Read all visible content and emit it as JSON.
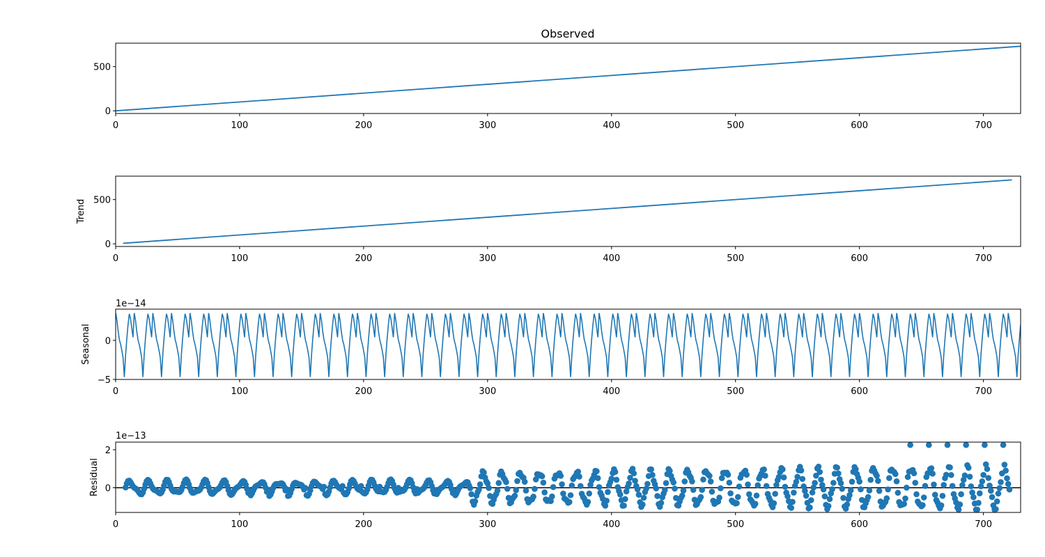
{
  "chart_data": [
    {
      "type": "line",
      "title": "Observed",
      "ylabel": "",
      "offset_text": "",
      "xlim": [
        0,
        730
      ],
      "ylim": [
        -30,
        765
      ],
      "x_ticks": [
        0,
        100,
        200,
        300,
        400,
        500,
        600,
        700
      ],
      "y_ticks": [
        0,
        500
      ],
      "y_tick_labels": [
        "0",
        "500"
      ],
      "series": [
        {
          "x": [
            0,
            730
          ],
          "y": [
            0,
            730
          ]
        }
      ]
    },
    {
      "type": "line",
      "title": "",
      "ylabel": "Trend",
      "offset_text": "",
      "xlim": [
        0,
        730
      ],
      "ylim": [
        -30,
        765
      ],
      "x_ticks": [
        0,
        100,
        200,
        300,
        400,
        500,
        600,
        700
      ],
      "y_ticks": [
        0,
        500
      ],
      "y_tick_labels": [
        "0",
        "500"
      ],
      "series": [
        {
          "x": [
            6,
            723
          ],
          "y": [
            6,
            723
          ]
        }
      ]
    },
    {
      "type": "line",
      "title": "",
      "ylabel": "Seasonal",
      "offset_text": "1e−14",
      "xlim": [
        0,
        730
      ],
      "ylim": [
        -5,
        4
      ],
      "x_ticks": [
        0,
        100,
        200,
        300,
        400,
        500,
        600,
        700
      ],
      "y_ticks": [
        -5,
        0
      ],
      "y_tick_labels": [
        "−5",
        "0"
      ],
      "period": 15,
      "cycle_values": [
        3.5,
        2.6,
        1.2,
        0.1,
        -0.5,
        -1.3,
        -2.2,
        -4.7,
        -1.9,
        0.2,
        2.0,
        3.4,
        2.8,
        1.6,
        0.4
      ]
    },
    {
      "type": "scatter",
      "title": "",
      "ylabel": "Residual",
      "offset_text": "1e−13",
      "xlim": [
        0,
        730
      ],
      "ylim": [
        -1.3,
        2.4
      ],
      "x_ticks": [
        0,
        100,
        200,
        300,
        400,
        500,
        600,
        700
      ],
      "y_ticks": [
        0,
        2
      ],
      "y_tick_labels": [
        "0",
        "2"
      ],
      "hline": 0,
      "x_start": 8,
      "x_end": 721
    }
  ]
}
